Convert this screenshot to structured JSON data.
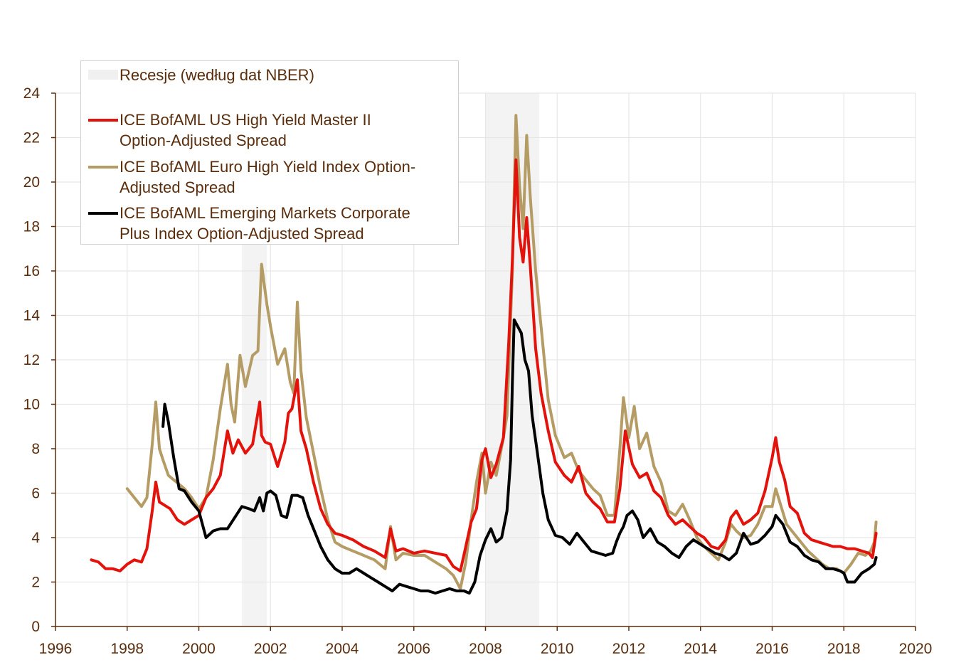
{
  "chart_data": {
    "type": "line",
    "title": "",
    "xlabel": "",
    "ylabel": "",
    "xlim": [
      1996,
      2020
    ],
    "ylim": [
      0,
      24
    ],
    "x_ticks": [
      1996,
      1998,
      2000,
      2002,
      2004,
      2006,
      2008,
      2010,
      2012,
      2014,
      2016,
      2018,
      2020
    ],
    "y_ticks": [
      0,
      2,
      4,
      6,
      8,
      10,
      12,
      14,
      16,
      18,
      20,
      22,
      24
    ],
    "grid": true,
    "legend_position": "top-left",
    "recessions": {
      "label": "Recesje (według dat NBER)",
      "color": "#f3f3f3",
      "periods": [
        [
          2001.2,
          2001.9
        ],
        [
          2008.0,
          2009.5
        ]
      ]
    },
    "series": [
      {
        "name": "ICE BofAML US High Yield Master II Option-Adjusted Spread",
        "color": "#e3120b",
        "x": [
          1997.0,
          1997.2,
          1997.4,
          1997.6,
          1997.8,
          1998.0,
          1998.2,
          1998.4,
          1998.55,
          1998.7,
          1998.8,
          1998.9,
          1999.0,
          1999.2,
          1999.4,
          1999.6,
          1999.8,
          2000.0,
          2000.2,
          2000.4,
          2000.6,
          2000.8,
          2000.95,
          2001.1,
          2001.3,
          2001.5,
          2001.7,
          2001.75,
          2001.85,
          2002.0,
          2002.2,
          2002.4,
          2002.5,
          2002.6,
          2002.75,
          2002.85,
          2003.0,
          2003.2,
          2003.4,
          2003.6,
          2003.8,
          2004.0,
          2004.3,
          2004.6,
          2004.9,
          2005.2,
          2005.35,
          2005.5,
          2005.7,
          2006.0,
          2006.3,
          2006.6,
          2006.9,
          2007.1,
          2007.3,
          2007.45,
          2007.6,
          2007.75,
          2007.9,
          2008.0,
          2008.15,
          2008.3,
          2008.5,
          2008.65,
          2008.75,
          2008.85,
          2008.95,
          2009.05,
          2009.15,
          2009.25,
          2009.4,
          2009.55,
          2009.75,
          2009.95,
          2010.2,
          2010.4,
          2010.6,
          2010.8,
          2011.0,
          2011.2,
          2011.4,
          2011.6,
          2011.75,
          2011.9,
          2012.1,
          2012.3,
          2012.5,
          2012.7,
          2012.9,
          2013.1,
          2013.3,
          2013.5,
          2013.7,
          2013.9,
          2014.1,
          2014.3,
          2014.5,
          2014.7,
          2014.85,
          2015.0,
          2015.2,
          2015.4,
          2015.6,
          2015.8,
          2016.0,
          2016.1,
          2016.2,
          2016.35,
          2016.5,
          2016.7,
          2016.9,
          2017.1,
          2017.3,
          2017.5,
          2017.7,
          2017.9,
          2018.1,
          2018.3,
          2018.5,
          2018.7,
          2018.8,
          2018.9
        ],
        "y": [
          3.0,
          2.9,
          2.6,
          2.6,
          2.5,
          2.8,
          3.0,
          2.9,
          3.5,
          5.2,
          6.5,
          5.6,
          5.5,
          5.3,
          4.8,
          4.6,
          4.8,
          5.0,
          5.8,
          6.2,
          6.8,
          8.8,
          7.8,
          8.4,
          7.8,
          8.2,
          10.1,
          8.6,
          8.3,
          8.2,
          7.2,
          8.3,
          9.6,
          9.8,
          11.1,
          8.8,
          8.0,
          6.5,
          5.3,
          4.6,
          4.2,
          4.1,
          3.9,
          3.6,
          3.4,
          3.1,
          4.4,
          3.4,
          3.5,
          3.3,
          3.4,
          3.3,
          3.2,
          2.7,
          2.5,
          3.6,
          4.7,
          5.3,
          7.5,
          8.0,
          6.7,
          7.3,
          8.5,
          12.8,
          16.5,
          21.0,
          17.5,
          16.4,
          18.4,
          16.2,
          12.5,
          10.5,
          8.8,
          7.4,
          6.8,
          6.5,
          7.2,
          6.0,
          5.6,
          5.3,
          4.7,
          4.7,
          6.2,
          8.8,
          7.3,
          6.7,
          6.9,
          6.1,
          5.8,
          5.0,
          4.6,
          4.8,
          4.5,
          4.2,
          4.0,
          3.6,
          3.5,
          3.9,
          4.9,
          5.2,
          4.6,
          4.8,
          5.1,
          6.1,
          7.6,
          8.5,
          7.4,
          6.6,
          5.4,
          5.1,
          4.2,
          3.9,
          3.8,
          3.7,
          3.6,
          3.6,
          3.5,
          3.5,
          3.4,
          3.3,
          3.1,
          4.2
        ]
      },
      {
        "name": "ICE BofAML Euro High Yield Index Option-Adjusted Spread",
        "color": "#b59b64",
        "x": [
          1998.0,
          1998.2,
          1998.4,
          1998.55,
          1998.7,
          1998.8,
          1998.9,
          1999.0,
          1999.15,
          1999.3,
          1999.45,
          1999.6,
          1999.8,
          2000.0,
          2000.2,
          2000.4,
          2000.6,
          2000.8,
          2000.9,
          2001.0,
          2001.15,
          2001.3,
          2001.5,
          2001.65,
          2001.75,
          2001.9,
          2002.0,
          2002.2,
          2002.4,
          2002.55,
          2002.65,
          2002.75,
          2002.85,
          2003.0,
          2003.2,
          2003.4,
          2003.6,
          2003.8,
          2004.0,
          2004.3,
          2004.6,
          2004.9,
          2005.2,
          2005.35,
          2005.5,
          2005.7,
          2006.0,
          2006.3,
          2006.6,
          2006.9,
          2007.1,
          2007.3,
          2007.45,
          2007.6,
          2007.75,
          2007.9,
          2008.0,
          2008.15,
          2008.3,
          2008.5,
          2008.6,
          2008.75,
          2008.85,
          2008.95,
          2009.05,
          2009.15,
          2009.25,
          2009.4,
          2009.55,
          2009.75,
          2009.95,
          2010.2,
          2010.4,
          2010.6,
          2010.8,
          2011.0,
          2011.2,
          2011.4,
          2011.6,
          2011.75,
          2011.85,
          2012.0,
          2012.15,
          2012.3,
          2012.5,
          2012.7,
          2012.9,
          2013.1,
          2013.3,
          2013.5,
          2013.7,
          2013.9,
          2014.1,
          2014.3,
          2014.5,
          2014.7,
          2014.85,
          2015.0,
          2015.2,
          2015.4,
          2015.6,
          2015.8,
          2016.0,
          2016.1,
          2016.25,
          2016.4,
          2016.6,
          2016.8,
          2017.0,
          2017.2,
          2017.4,
          2017.6,
          2017.8,
          2018.0,
          2018.2,
          2018.4,
          2018.6,
          2018.75,
          2018.85,
          2018.9
        ],
        "y": [
          6.2,
          5.8,
          5.4,
          5.8,
          8.2,
          10.1,
          8.0,
          7.5,
          6.8,
          6.6,
          6.4,
          6.2,
          5.8,
          5.3,
          5.8,
          7.5,
          9.8,
          11.8,
          10.0,
          9.2,
          12.2,
          10.8,
          12.2,
          12.4,
          16.3,
          14.5,
          13.5,
          11.8,
          12.5,
          11.0,
          10.5,
          14.6,
          11.5,
          9.4,
          7.8,
          6.2,
          4.8,
          3.8,
          3.6,
          3.4,
          3.2,
          3.0,
          2.6,
          4.5,
          3.0,
          3.3,
          3.2,
          3.2,
          2.9,
          2.6,
          2.3,
          1.7,
          2.9,
          4.8,
          6.5,
          7.8,
          6.0,
          7.4,
          6.8,
          8.5,
          9.5,
          16.0,
          23.0,
          19.8,
          17.9,
          22.1,
          19.3,
          16.0,
          13.5,
          10.2,
          8.6,
          7.6,
          7.8,
          7.0,
          6.6,
          6.2,
          5.9,
          5.0,
          5.0,
          8.0,
          10.3,
          8.5,
          9.9,
          8.0,
          8.7,
          7.2,
          6.5,
          5.2,
          5.0,
          5.5,
          4.8,
          4.0,
          3.6,
          3.3,
          3.0,
          3.8,
          4.6,
          4.3,
          4.0,
          4.1,
          4.6,
          5.4,
          5.4,
          6.2,
          5.4,
          4.6,
          4.2,
          3.8,
          3.4,
          3.1,
          2.8,
          2.6,
          2.6,
          2.4,
          2.8,
          3.3,
          3.2,
          3.4,
          3.8,
          4.7
        ]
      },
      {
        "name": "ICE BofAML Emerging Markets Corporate Plus Index Option-Adjusted Spread",
        "color": "#000000",
        "x": [
          1999.0,
          1999.05,
          1999.15,
          1999.3,
          1999.45,
          1999.6,
          1999.8,
          2000.0,
          2000.2,
          2000.4,
          2000.6,
          2000.8,
          2001.0,
          2001.2,
          2001.4,
          2001.55,
          2001.7,
          2001.8,
          2001.9,
          2002.0,
          2002.15,
          2002.3,
          2002.45,
          2002.6,
          2002.75,
          2002.9,
          2003.05,
          2003.2,
          2003.4,
          2003.6,
          2003.8,
          2004.0,
          2004.2,
          2004.4,
          2004.6,
          2004.8,
          2005.0,
          2005.2,
          2005.4,
          2005.6,
          2005.8,
          2006.0,
          2006.2,
          2006.4,
          2006.6,
          2006.8,
          2007.0,
          2007.2,
          2007.4,
          2007.55,
          2007.7,
          2007.85,
          2008.0,
          2008.15,
          2008.3,
          2008.45,
          2008.6,
          2008.7,
          2008.75,
          2008.8,
          2008.9,
          2009.0,
          2009.1,
          2009.2,
          2009.3,
          2009.45,
          2009.6,
          2009.75,
          2009.95,
          2010.15,
          2010.35,
          2010.55,
          2010.75,
          2010.95,
          2011.15,
          2011.35,
          2011.55,
          2011.65,
          2011.75,
          2011.85,
          2011.95,
          2012.1,
          2012.25,
          2012.4,
          2012.6,
          2012.8,
          2013.0,
          2013.2,
          2013.4,
          2013.6,
          2013.8,
          2014.0,
          2014.2,
          2014.4,
          2014.6,
          2014.8,
          2015.0,
          2015.2,
          2015.4,
          2015.6,
          2015.8,
          2016.0,
          2016.1,
          2016.3,
          2016.5,
          2016.7,
          2016.9,
          2017.1,
          2017.3,
          2017.5,
          2017.7,
          2017.9,
          2018.0,
          2018.1,
          2018.3,
          2018.5,
          2018.7,
          2018.85,
          2018.9
        ],
        "y": [
          9.0,
          10.0,
          9.2,
          7.6,
          6.2,
          6.1,
          5.6,
          5.2,
          4.0,
          4.3,
          4.4,
          4.4,
          4.9,
          5.4,
          5.3,
          5.2,
          5.8,
          5.2,
          6.0,
          6.1,
          5.9,
          5.0,
          4.9,
          5.9,
          5.9,
          5.8,
          5.0,
          4.4,
          3.6,
          3.0,
          2.6,
          2.4,
          2.4,
          2.6,
          2.4,
          2.2,
          2.0,
          1.8,
          1.6,
          1.9,
          1.8,
          1.7,
          1.6,
          1.6,
          1.5,
          1.6,
          1.7,
          1.6,
          1.6,
          1.5,
          2.0,
          3.2,
          3.9,
          4.4,
          3.8,
          4.0,
          5.2,
          7.5,
          11.0,
          13.8,
          13.5,
          13.2,
          12.0,
          11.5,
          9.5,
          7.8,
          6.0,
          4.8,
          4.1,
          4.0,
          3.7,
          4.2,
          3.8,
          3.4,
          3.3,
          3.2,
          3.3,
          3.8,
          4.2,
          4.5,
          5.0,
          5.2,
          4.8,
          4.0,
          4.4,
          3.8,
          3.6,
          3.3,
          3.1,
          3.6,
          3.9,
          3.7,
          3.5,
          3.3,
          3.2,
          3.0,
          3.3,
          4.2,
          3.7,
          3.8,
          4.1,
          4.5,
          5.0,
          4.6,
          3.8,
          3.6,
          3.2,
          3.0,
          2.9,
          2.6,
          2.6,
          2.5,
          2.4,
          2.0,
          2.0,
          2.4,
          2.6,
          2.8,
          3.1
        ]
      }
    ]
  },
  "legend": {
    "recession_label": "Recesje (według dat NBER)",
    "us_hy_line1": "ICE BofAML US High Yield Master II",
    "us_hy_line2": "Option-Adjusted Spread",
    "euro_hy_line1": "ICE BofAML Euro High Yield Index Option-",
    "euro_hy_line2": "Adjusted Spread",
    "em_line1": "ICE BofAML Emerging Markets Corporate",
    "em_line2": "Plus Index Option-Adjusted Spread"
  }
}
